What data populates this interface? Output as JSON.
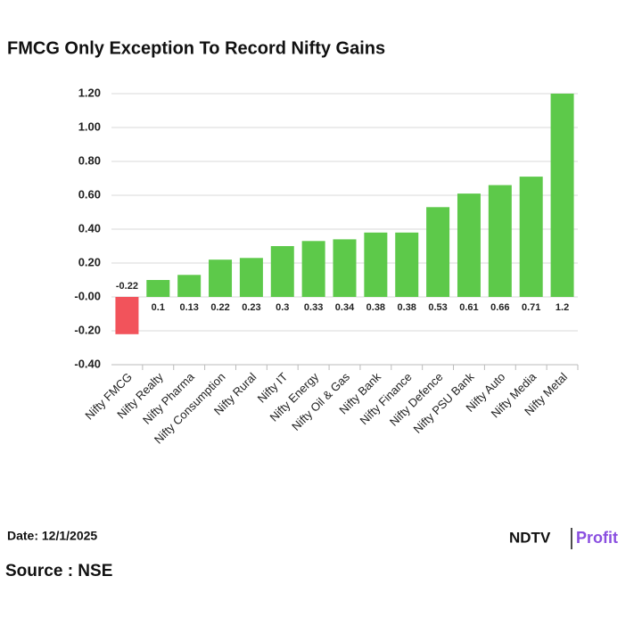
{
  "chart_data": {
    "type": "bar",
    "title": "FMCG Only Exception To Record Nifty Gains",
    "categories": [
      "Nifty FMCG",
      "Nifty Realty",
      "Nifty Pharma",
      "Nifty Consumption",
      "Nifty Rural",
      "Nifty IT",
      "Nifty Energy",
      "Nifty Oil & Gas",
      "Nifty Bank",
      "Nifty Finance",
      "Nifty Defence",
      "Nifty PSU Bank",
      "Nifty Auto",
      "Nifty Media",
      "Nifty Metal"
    ],
    "values": [
      -0.22,
      0.1,
      0.13,
      0.22,
      0.23,
      0.3,
      0.33,
      0.34,
      0.38,
      0.38,
      0.53,
      0.61,
      0.66,
      0.71,
      1.2
    ],
    "color": "#5dc94a",
    "negative_color": "#f2535b",
    "ylim": [
      -0.4,
      1.2
    ],
    "yticks": [
      {
        "value": -0.4,
        "label": "-0.40"
      },
      {
        "value": -0.2,
        "label": "-0.20"
      },
      {
        "value": 0,
        "label": "-0.00"
      },
      {
        "value": 0.2,
        "label": "0.20"
      },
      {
        "value": 0.4,
        "label": "0.40"
      },
      {
        "value": 0.6,
        "label": "0.60"
      },
      {
        "value": 0.8,
        "label": "0.80"
      },
      {
        "value": 1.0,
        "label": "1.00"
      },
      {
        "value": 1.2,
        "label": "1.20"
      }
    ],
    "grid": true
  },
  "footer": {
    "date": "Date: 12/1/2025",
    "source": "Source : NSE",
    "brand": "NDTV",
    "brand_suffix": "Profit"
  }
}
